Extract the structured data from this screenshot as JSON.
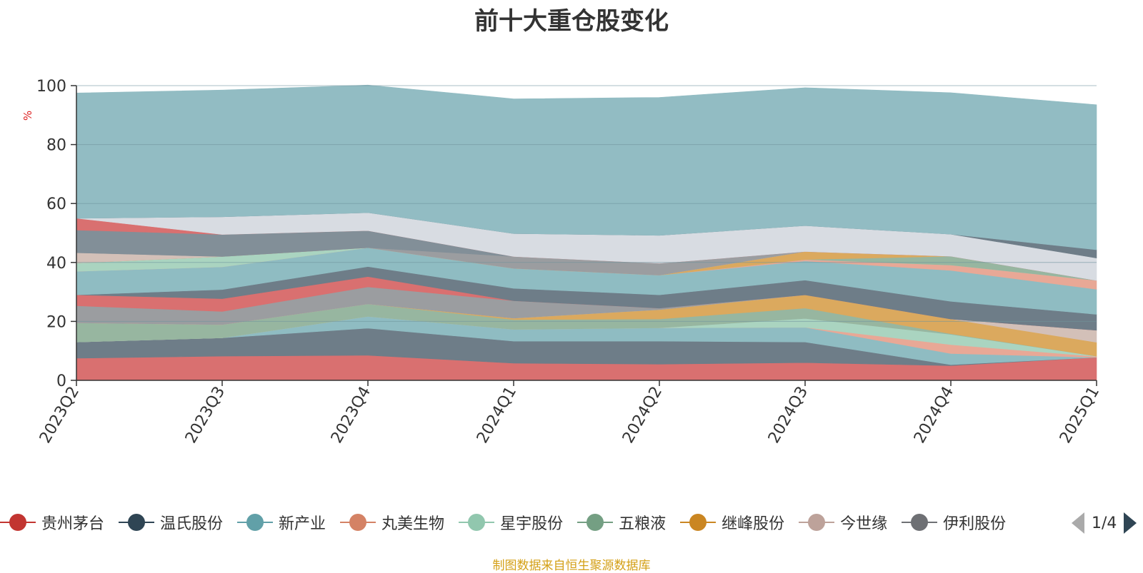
{
  "title": "前十大重仓股变化",
  "source": "制图数据来自恒生聚源数据库",
  "legend": {
    "items": [
      {
        "name": "贵州茅台",
        "color": "#c23531"
      },
      {
        "name": "温氏股份",
        "color": "#2f4554"
      },
      {
        "name": "新产业",
        "color": "#61a0a8"
      },
      {
        "name": "丸美生物",
        "color": "#d48265"
      },
      {
        "name": "星宇股份",
        "color": "#91c7ae"
      },
      {
        "name": "五粮液",
        "color": "#749f83"
      },
      {
        "name": "继峰股份",
        "color": "#ca8622"
      },
      {
        "name": "今世缘",
        "color": "#bda29a"
      },
      {
        "name": "伊利股份",
        "color": "#6e7074"
      }
    ],
    "page": "1/4"
  },
  "chart_data": {
    "type": "area",
    "stacked": true,
    "title": "前十大重仓股变化",
    "ylabel": "%",
    "ylim": [
      0,
      100
    ],
    "yticks": [
      0,
      20,
      40,
      60,
      80,
      100
    ],
    "grid": true,
    "categories": [
      "2023Q2",
      "2023Q3",
      "2023Q4",
      "2024Q1",
      "2024Q2",
      "2024Q3",
      "2024Q4",
      "2025Q1"
    ],
    "series": [
      {
        "name": "贵州茅台",
        "color": "#d97070",
        "values": [
          7.5,
          8.2,
          8.5,
          5.8,
          5.5,
          6.0,
          5.0,
          7.8
        ]
      },
      {
        "name": "温氏股份",
        "color": "#6e7d88",
        "values": [
          5.5,
          6.2,
          9.2,
          7.5,
          7.8,
          7.0,
          0.3,
          0
        ]
      },
      {
        "name": "新产业",
        "color": "#8fbcc2",
        "values": [
          0,
          0,
          4.0,
          4.0,
          4.5,
          5.0,
          3.8,
          0
        ]
      },
      {
        "name": "丸美生物",
        "color": "#e8a896",
        "values": [
          0,
          0,
          0,
          0,
          0,
          0,
          3.0,
          0.3
        ]
      },
      {
        "name": "星宇股份",
        "color": "#aad4c0",
        "values": [
          0,
          0,
          0,
          0,
          0,
          3.0,
          3.5,
          0.1
        ]
      },
      {
        "name": "五粮液",
        "color": "#97b6a0",
        "values": [
          6.5,
          4.5,
          4.2,
          3.3,
          3.0,
          3.5,
          0.2,
          0
        ]
      },
      {
        "name": "继峰股份",
        "color": "#dba95e",
        "values": [
          0,
          0,
          0,
          0.5,
          3.2,
          4.5,
          5.0,
          4.7
        ]
      },
      {
        "name": "今世缘",
        "color": "#d3c0b8",
        "values": [
          0,
          0,
          0,
          0,
          0,
          0,
          0,
          4.1
        ]
      },
      {
        "name": "伊利股份",
        "color": "#9b9da0",
        "values": [
          5.8,
          4.5,
          5.8,
          5.9,
          0.5,
          0,
          0,
          0
        ]
      },
      {
        "name": "",
        "color": "#d97070",
        "values": [
          3.7,
          4.3,
          3.5,
          0,
          0,
          0,
          0,
          0
        ]
      },
      {
        "name": "",
        "color": "#6e7d88",
        "values": [
          0,
          3.1,
          3.4,
          4.2,
          4.5,
          5.0,
          6.0,
          5.4
        ]
      },
      {
        "name": "",
        "color": "#8fbcc2",
        "values": [
          8.0,
          7.7,
          6.4,
          6.8,
          6.7,
          6.5,
          10.5,
          8.5
        ]
      },
      {
        "name": "",
        "color": "#e8a896",
        "values": [
          0,
          0,
          0,
          0,
          0,
          0.5,
          1.8,
          3.0
        ]
      },
      {
        "name": "",
        "color": "#aad4c0",
        "values": [
          2.8,
          3.5,
          0,
          0,
          0,
          0,
          0,
          0
        ]
      },
      {
        "name": "",
        "color": "#97b6a0",
        "values": [
          0,
          0,
          0,
          0,
          0,
          0,
          3.0,
          0
        ]
      },
      {
        "name": "",
        "color": "#dba95e",
        "values": [
          0,
          0,
          0,
          0,
          0,
          2.7,
          0,
          0
        ]
      },
      {
        "name": "",
        "color": "#d3c0b8",
        "values": [
          3.5,
          0,
          0,
          0,
          0,
          0,
          0,
          0
        ]
      },
      {
        "name": "",
        "color": "#9b9da0",
        "values": [
          0,
          0,
          0,
          4.0,
          4.0,
          0,
          0,
          0
        ]
      },
      {
        "name": "",
        "color": "#828f98",
        "values": [
          7.7,
          7.5,
          5.8,
          0,
          0,
          0,
          0,
          0
        ]
      },
      {
        "name": "",
        "color": "#d97070",
        "values": [
          4.0,
          0,
          0,
          0,
          0,
          0,
          0,
          0
        ]
      },
      {
        "name": "",
        "color": "#d8dce2",
        "values": [
          0,
          6.0,
          6.1,
          7.8,
          9.5,
          8.8,
          7.5,
          7.6
        ]
      },
      {
        "name": "",
        "color": "#6e7d88",
        "values": [
          0,
          0,
          0,
          0,
          0,
          0,
          0,
          2.8
        ]
      },
      {
        "name": "",
        "color": "#92bcc3",
        "values": [
          42.5,
          43.0,
          43.3,
          45.7,
          46.8,
          46.8,
          48.0,
          49.2
        ]
      }
    ]
  }
}
